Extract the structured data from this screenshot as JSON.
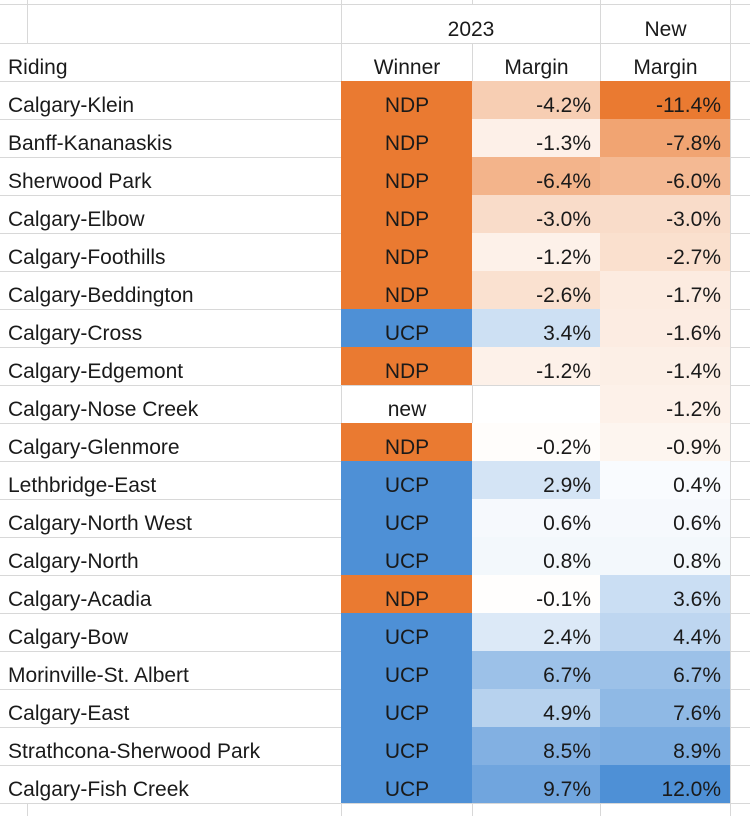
{
  "sheet": {
    "title_row": {
      "year_2023": "2023",
      "new": "New"
    },
    "header_row": {
      "riding": "Riding",
      "winner": "Winner",
      "margin_2023": "Margin",
      "margin_new": "Margin"
    },
    "rows": [
      {
        "riding": "Calgary-Klein",
        "winner": "NDP",
        "margin": "-4.2%",
        "new_margin": "-11.4%"
      },
      {
        "riding": "Banff-Kananaskis",
        "winner": "NDP",
        "margin": "-1.3%",
        "new_margin": "-7.8%"
      },
      {
        "riding": "Sherwood Park",
        "winner": "NDP",
        "margin": "-6.4%",
        "new_margin": "-6.0%"
      },
      {
        "riding": "Calgary-Elbow",
        "winner": "NDP",
        "margin": "-3.0%",
        "new_margin": "-3.0%"
      },
      {
        "riding": "Calgary-Foothills",
        "winner": "NDP",
        "margin": "-1.2%",
        "new_margin": "-2.7%"
      },
      {
        "riding": "Calgary-Beddington",
        "winner": "NDP",
        "margin": "-2.6%",
        "new_margin": "-1.7%"
      },
      {
        "riding": "Calgary-Cross",
        "winner": "UCP",
        "margin": "3.4%",
        "new_margin": "-1.6%"
      },
      {
        "riding": "Calgary-Edgemont",
        "winner": "NDP",
        "margin": "-1.2%",
        "new_margin": "-1.4%"
      },
      {
        "riding": "Calgary-Nose Creek",
        "winner": "new",
        "margin": "",
        "new_margin": "-1.2%"
      },
      {
        "riding": "Calgary-Glenmore",
        "winner": "NDP",
        "margin": "-0.2%",
        "new_margin": "-0.9%"
      },
      {
        "riding": "Lethbridge-East",
        "winner": "UCP",
        "margin": "2.9%",
        "new_margin": "0.4%"
      },
      {
        "riding": "Calgary-North West",
        "winner": "UCP",
        "margin": "0.6%",
        "new_margin": "0.6%"
      },
      {
        "riding": "Calgary-North",
        "winner": "UCP",
        "margin": "0.8%",
        "new_margin": "0.8%"
      },
      {
        "riding": "Calgary-Acadia",
        "winner": "NDP",
        "margin": "-0.1%",
        "new_margin": "3.6%"
      },
      {
        "riding": "Calgary-Bow",
        "winner": "UCP",
        "margin": "2.4%",
        "new_margin": "4.4%"
      },
      {
        "riding": "Morinville-St. Albert",
        "winner": "UCP",
        "margin": "6.7%",
        "new_margin": "6.7%"
      },
      {
        "riding": "Calgary-East",
        "winner": "UCP",
        "margin": "4.9%",
        "new_margin": "7.6%"
      },
      {
        "riding": "Strathcona-Sherwood Park",
        "winner": "UCP",
        "margin": "8.5%",
        "new_margin": "8.9%"
      },
      {
        "riding": "Calgary-Fish Creek",
        "winner": "UCP",
        "margin": "9.7%",
        "new_margin": "12.0%"
      }
    ],
    "colors": {
      "winner_fills": {
        "NDP": "#EA7A31",
        "UCP": "#4E90D6"
      },
      "scale_negative_full": "#EA7A31",
      "scale_positive_full": "#4E90D6",
      "gridline": "#D8D8D8",
      "text": "#1A1A1A",
      "background": "#FFFFFF"
    }
  }
}
